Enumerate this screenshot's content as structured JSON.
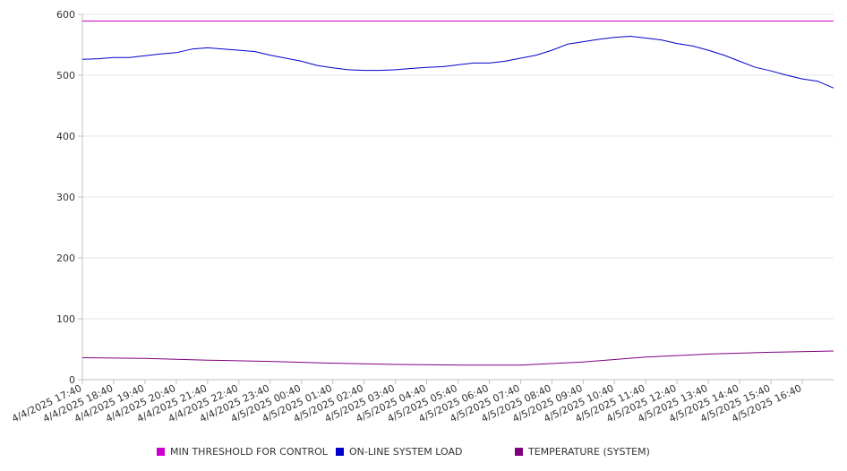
{
  "chart_data": {
    "type": "line",
    "title": "",
    "xlabel": "",
    "ylabel": "",
    "ylim": [
      0,
      600
    ],
    "y_ticks": [
      "0",
      "100",
      "200",
      "300",
      "400",
      "500",
      "600"
    ],
    "x_range": [
      "4/4/2025 17:40",
      "4/5/2025 17:40"
    ],
    "x_ticks": [
      "4/4/2025 17:40",
      "4/4/2025 18:40",
      "4/4/2025 19:40",
      "4/4/2025 20:40",
      "4/4/2025 21:40",
      "4/4/2025 22:40",
      "4/4/2025 23:40",
      "4/5/2025 00:40",
      "4/5/2025 01:40",
      "4/5/2025 02:40",
      "4/5/2025 03:40",
      "4/5/2025 04:40",
      "4/5/2025 05:40",
      "4/5/2025 06:40",
      "4/5/2025 07:40",
      "4/5/2025 08:40",
      "4/5/2025 09:40",
      "4/5/2025 10:40",
      "4/5/2025 11:40",
      "4/5/2025 12:40",
      "4/5/2025 13:40",
      "4/5/2025 14:40",
      "4/5/2025 15:40",
      "4/5/2025 16:40"
    ],
    "grid": true,
    "legend_position": "bottom",
    "series": [
      {
        "name": "MIN THRESHOLD FOR CONTROL",
        "color": "#cc00cc",
        "x": [
          "4/4/2025 17:40",
          "4/5/2025 17:40"
        ],
        "values": [
          589,
          589
        ]
      },
      {
        "name": "ON-LINE SYSTEM LOAD",
        "color": "#0000cc",
        "x": [
          "4/4/2025 17:40",
          "4/4/2025 18:10",
          "4/4/2025 18:40",
          "4/4/2025 19:10",
          "4/4/2025 19:40",
          "4/4/2025 20:10",
          "4/4/2025 20:40",
          "4/4/2025 21:10",
          "4/4/2025 21:40",
          "4/4/2025 22:10",
          "4/4/2025 22:40",
          "4/4/2025 23:10",
          "4/4/2025 23:40",
          "4/5/2025 00:10",
          "4/5/2025 00:40",
          "4/5/2025 01:10",
          "4/5/2025 01:40",
          "4/5/2025 02:10",
          "4/5/2025 02:40",
          "4/5/2025 03:10",
          "4/5/2025 03:40",
          "4/5/2025 04:10",
          "4/5/2025 04:40",
          "4/5/2025 05:10",
          "4/5/2025 05:40",
          "4/5/2025 06:10",
          "4/5/2025 06:40",
          "4/5/2025 07:10",
          "4/5/2025 07:40",
          "4/5/2025 08:10",
          "4/5/2025 08:40",
          "4/5/2025 09:10",
          "4/5/2025 09:40",
          "4/5/2025 10:10",
          "4/5/2025 10:40",
          "4/5/2025 11:10",
          "4/5/2025 11:40",
          "4/5/2025 12:10",
          "4/5/2025 12:40",
          "4/5/2025 13:10",
          "4/5/2025 13:40",
          "4/5/2025 14:10",
          "4/5/2025 14:40",
          "4/5/2025 15:10",
          "4/5/2025 15:40",
          "4/5/2025 16:10",
          "4/5/2025 16:40",
          "4/5/2025 17:10",
          "4/5/2025 17:40"
        ],
        "values": [
          526,
          527,
          529,
          529,
          532,
          535,
          537,
          543,
          545,
          543,
          541,
          539,
          533,
          528,
          523,
          516,
          512,
          509,
          508,
          508,
          509,
          511,
          513,
          514,
          517,
          520,
          520,
          523,
          528,
          533,
          541,
          551,
          555,
          559,
          562,
          564,
          561,
          558,
          552,
          548,
          541,
          533,
          523,
          513,
          507,
          500,
          494,
          490,
          479
        ]
      },
      {
        "name": "TEMPERATURE (SYSTEM)",
        "color": "#800080",
        "x": [
          "4/4/2025 17:40",
          "4/4/2025 19:40",
          "4/4/2025 21:40",
          "4/4/2025 23:40",
          "4/5/2025 01:40",
          "4/5/2025 03:40",
          "4/5/2025 05:40",
          "4/5/2025 07:40",
          "4/5/2025 09:40",
          "4/5/2025 11:40",
          "4/5/2025 13:40",
          "4/5/2025 15:40",
          "4/5/2025 17:40"
        ],
        "values": [
          36,
          35,
          32,
          30,
          27,
          25,
          24,
          24,
          29,
          37,
          42,
          45,
          47
        ]
      }
    ]
  }
}
